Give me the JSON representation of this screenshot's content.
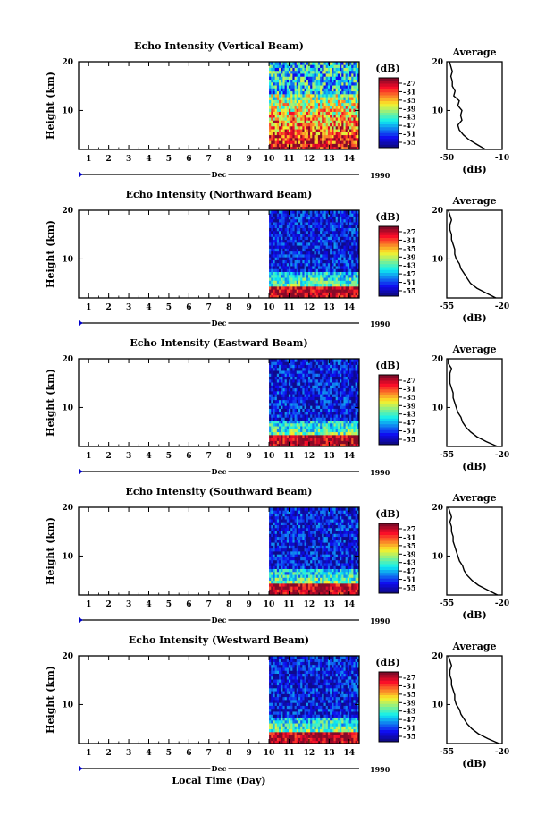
{
  "figure": {
    "xlabel": "Local Time (Day)",
    "month_label": "Dec",
    "year_label": "1990",
    "ylabel": "Height (km)",
    "cb_unit": "(dB)",
    "avg_title": "Average",
    "avg_xlabel": "(dB)"
  },
  "chart_data": [
    {
      "type": "heatmap",
      "title": "Echo Intensity (Vertical Beam)",
      "x_ticks": [
        "1",
        "2",
        "3",
        "4",
        "5",
        "6",
        "7",
        "8",
        "9",
        "10",
        "11",
        "12",
        "13",
        "14"
      ],
      "y_ticks": [
        "10",
        "20"
      ],
      "xlim": [
        0.5,
        14.5
      ],
      "ylim": [
        2,
        20
      ],
      "data_start_day": 10.0,
      "colorbar": {
        "ticks": [
          "-27",
          "-31",
          "-35",
          "-39",
          "-43",
          "-47",
          "-51",
          "-55"
        ]
      },
      "average_profile": {
        "xlim": [
          -50,
          -10
        ],
        "xticks": [
          "-50",
          "-10"
        ],
        "y_ticks": [
          "10",
          "20"
        ],
        "points": [
          [
            -22,
            2
          ],
          [
            -28,
            3
          ],
          [
            -34,
            4
          ],
          [
            -38,
            5
          ],
          [
            -41,
            6
          ],
          [
            -42,
            7
          ],
          [
            -39,
            8
          ],
          [
            -40,
            9
          ],
          [
            -39,
            10
          ],
          [
            -42,
            11
          ],
          [
            -41,
            12
          ],
          [
            -45,
            13
          ],
          [
            -44,
            14
          ],
          [
            -46,
            15
          ],
          [
            -46,
            16
          ],
          [
            -47,
            17
          ],
          [
            -46,
            18
          ],
          [
            -47,
            19
          ],
          [
            -48,
            20
          ]
        ]
      }
    },
    {
      "type": "heatmap",
      "title": "Echo Intensity (Northward Beam)",
      "x_ticks": [
        "1",
        "2",
        "3",
        "4",
        "5",
        "6",
        "7",
        "8",
        "9",
        "10",
        "11",
        "12",
        "13",
        "14"
      ],
      "y_ticks": [
        "10",
        "20"
      ],
      "xlim": [
        0.5,
        14.5
      ],
      "ylim": [
        2,
        20
      ],
      "data_start_day": 10.0,
      "colorbar": {
        "ticks": [
          "-27",
          "-31",
          "-35",
          "-39",
          "-43",
          "-47",
          "-51",
          "-55"
        ]
      },
      "average_profile": {
        "xlim": [
          -55,
          -20
        ],
        "xticks": [
          "-55",
          "-20"
        ],
        "y_ticks": [
          "10",
          "20"
        ],
        "points": [
          [
            -24,
            2
          ],
          [
            -30,
            3
          ],
          [
            -36,
            4
          ],
          [
            -40,
            5
          ],
          [
            -42,
            6
          ],
          [
            -44,
            7
          ],
          [
            -46,
            8
          ],
          [
            -47,
            9
          ],
          [
            -49,
            10
          ],
          [
            -50,
            11
          ],
          [
            -50,
            12
          ],
          [
            -51,
            13
          ],
          [
            -52,
            14
          ],
          [
            -52,
            15
          ],
          [
            -53,
            16
          ],
          [
            -53,
            17
          ],
          [
            -52,
            18
          ],
          [
            -53,
            19
          ],
          [
            -54,
            20
          ]
        ]
      }
    },
    {
      "type": "heatmap",
      "title": "Echo Intensity (Eastward Beam)",
      "x_ticks": [
        "1",
        "2",
        "3",
        "4",
        "5",
        "6",
        "7",
        "8",
        "9",
        "10",
        "11",
        "12",
        "13",
        "14"
      ],
      "y_ticks": [
        "10",
        "20"
      ],
      "xlim": [
        0.5,
        14.5
      ],
      "ylim": [
        2,
        20
      ],
      "data_start_day": 10.0,
      "colorbar": {
        "ticks": [
          "-27",
          "-31",
          "-35",
          "-39",
          "-43",
          "-47",
          "-51",
          "-55"
        ]
      },
      "average_profile": {
        "xlim": [
          -55,
          -20
        ],
        "xticks": [
          "-55",
          "-20"
        ],
        "y_ticks": [
          "10",
          "20"
        ],
        "points": [
          [
            -23,
            2
          ],
          [
            -30,
            3
          ],
          [
            -36,
            4
          ],
          [
            -40,
            5
          ],
          [
            -43,
            6
          ],
          [
            -45,
            7
          ],
          [
            -46,
            8
          ],
          [
            -48,
            9
          ],
          [
            -49,
            10
          ],
          [
            -50,
            11
          ],
          [
            -51,
            12
          ],
          [
            -51,
            13
          ],
          [
            -52,
            14
          ],
          [
            -53,
            15
          ],
          [
            -53,
            16
          ],
          [
            -53,
            17
          ],
          [
            -52,
            18
          ],
          [
            -54,
            19
          ],
          [
            -54,
            20
          ]
        ]
      }
    },
    {
      "type": "heatmap",
      "title": "Echo Intensity (Southward Beam)",
      "x_ticks": [
        "1",
        "2",
        "3",
        "4",
        "5",
        "6",
        "7",
        "8",
        "9",
        "10",
        "11",
        "12",
        "13",
        "14"
      ],
      "y_ticks": [
        "10",
        "20"
      ],
      "xlim": [
        0.5,
        14.5
      ],
      "ylim": [
        2,
        20
      ],
      "data_start_day": 10.0,
      "colorbar": {
        "ticks": [
          "-27",
          "-31",
          "-35",
          "-39",
          "-43",
          "-47",
          "-51",
          "-55"
        ]
      },
      "average_profile": {
        "xlim": [
          -55,
          -20
        ],
        "xticks": [
          "-55",
          "-20"
        ],
        "y_ticks": [
          "10",
          "20"
        ],
        "points": [
          [
            -23,
            2
          ],
          [
            -29,
            3
          ],
          [
            -35,
            4
          ],
          [
            -39,
            5
          ],
          [
            -42,
            6
          ],
          [
            -44,
            7
          ],
          [
            -45,
            8
          ],
          [
            -47,
            9
          ],
          [
            -48,
            10
          ],
          [
            -49,
            11
          ],
          [
            -50,
            12
          ],
          [
            -51,
            13
          ],
          [
            -51,
            14
          ],
          [
            -52,
            15
          ],
          [
            -52,
            16
          ],
          [
            -53,
            17
          ],
          [
            -52,
            18
          ],
          [
            -53,
            19
          ],
          [
            -54,
            20
          ]
        ]
      }
    },
    {
      "type": "heatmap",
      "title": "Echo Intensity (Westward Beam)",
      "x_ticks": [
        "1",
        "2",
        "3",
        "4",
        "5",
        "6",
        "7",
        "8",
        "9",
        "10",
        "11",
        "12",
        "13",
        "14"
      ],
      "y_ticks": [
        "10",
        "20"
      ],
      "xlim": [
        0.5,
        14.5
      ],
      "ylim": [
        2,
        20
      ],
      "data_start_day": 10.0,
      "colorbar": {
        "ticks": [
          "-27",
          "-31",
          "-35",
          "-39",
          "-43",
          "-47",
          "-51",
          "-55"
        ]
      },
      "average_profile": {
        "xlim": [
          -55,
          -20
        ],
        "xticks": [
          "-55",
          "-20"
        ],
        "y_ticks": [
          "10",
          "20"
        ],
        "points": [
          [
            -22,
            2
          ],
          [
            -29,
            3
          ],
          [
            -35,
            4
          ],
          [
            -39,
            5
          ],
          [
            -42,
            6
          ],
          [
            -44,
            7
          ],
          [
            -46,
            8
          ],
          [
            -47,
            9
          ],
          [
            -49,
            10
          ],
          [
            -50,
            11
          ],
          [
            -50,
            12
          ],
          [
            -51,
            13
          ],
          [
            -52,
            14
          ],
          [
            -52,
            15
          ],
          [
            -53,
            16
          ],
          [
            -53,
            17
          ],
          [
            -52,
            18
          ],
          [
            -53,
            19
          ],
          [
            -54,
            20
          ]
        ]
      }
    }
  ]
}
